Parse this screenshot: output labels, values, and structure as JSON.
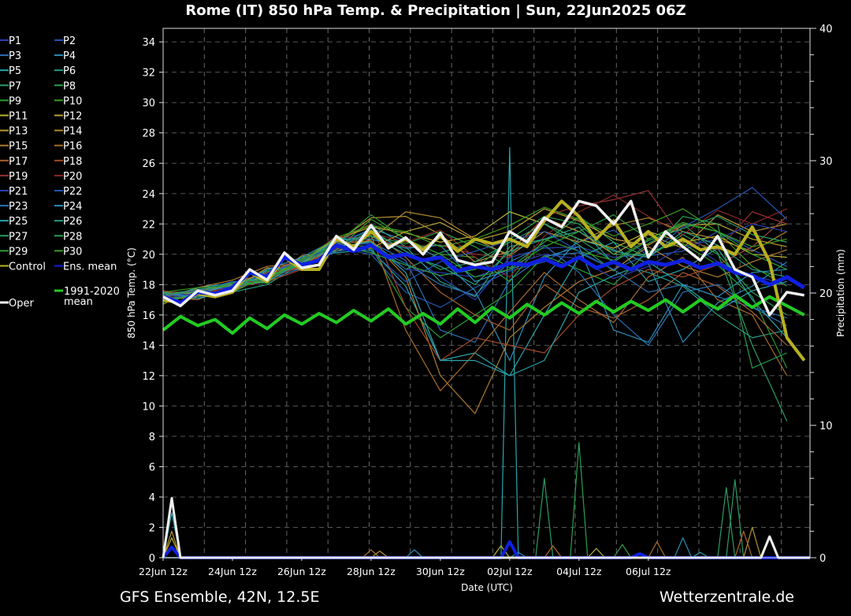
{
  "chart_data": {
    "type": "line",
    "title": "Rome  (IT)  850 hPa Temp. & Precipitation | Sun, 22Jun2025 06Z",
    "xlabel": "Date (UTC)",
    "ylabel": "850 hPa Temp. (°C)",
    "y2label": "Precipitation (mm)",
    "footer_left": "GFS Ensemble, 42N, 12.5E",
    "footer_right": "Wetterzentrale.de",
    "x_unit": "hours since 22Jun 12z",
    "xlim": [
      0,
      448
    ],
    "ylim": [
      0,
      35
    ],
    "y2lim": [
      0,
      40
    ],
    "grid": true,
    "x_ticks": [
      {
        "hour": 0,
        "label": "22Jun 12z"
      },
      {
        "hour": 48,
        "label": "24Jun 12z"
      },
      {
        "hour": 96,
        "label": "26Jun 12z"
      },
      {
        "hour": 144,
        "label": "28Jun 12z"
      },
      {
        "hour": 192,
        "label": "30Jun 12z"
      },
      {
        "hour": 240,
        "label": "02Jul 12z"
      },
      {
        "hour": 288,
        "label": "04Jul 12z"
      },
      {
        "hour": 336,
        "label": "06Jul 12z"
      }
    ],
    "y_ticks": [
      0,
      2,
      4,
      6,
      8,
      10,
      12,
      14,
      16,
      18,
      20,
      22,
      24,
      26,
      28,
      30,
      32,
      34
    ],
    "y2_ticks": [
      0,
      10,
      20,
      30,
      40
    ],
    "legend_placement": "left",
    "member_step_hours": 24,
    "members": [
      {
        "name": "P1",
        "color": "#2a3db0",
        "values": [
          17.0,
          17.3,
          17.9,
          18.4,
          19.6,
          20.9,
          21.5,
          20.2,
          18.5,
          17.0,
          19.8,
          20.4,
          20.5,
          19.8,
          20.0,
          21.0,
          19.5,
          18.6,
          18.0
        ]
      },
      {
        "name": "P2",
        "color": "#2455b0",
        "values": [
          17.3,
          17.1,
          17.6,
          18.8,
          19.0,
          20.4,
          20.0,
          17.5,
          16.5,
          17.8,
          18.9,
          19.5,
          20.8,
          21.6,
          19.9,
          20.2,
          21.5,
          20.3,
          19.2
        ]
      },
      {
        "name": "P3",
        "color": "#2a70b4",
        "values": [
          16.9,
          17.6,
          18.0,
          18.2,
          19.5,
          21.0,
          20.8,
          19.6,
          15.0,
          14.2,
          18.3,
          19.9,
          20.1,
          19.0,
          17.5,
          18.0,
          17.2,
          16.5,
          15.3
        ]
      },
      {
        "name": "P4",
        "color": "#2a8fb8",
        "values": [
          17.4,
          17.4,
          17.7,
          19.0,
          19.2,
          20.5,
          21.7,
          20.9,
          19.7,
          17.6,
          13.0,
          18.5,
          21.0,
          20.3,
          19.4,
          14.2,
          16.8,
          17.9,
          19.5
        ]
      },
      {
        "name": "P5",
        "color": "#2aa4ac",
        "values": [
          17.1,
          17.8,
          18.1,
          18.6,
          19.8,
          20.1,
          20.3,
          17.9,
          13.0,
          13.5,
          12.0,
          16.0,
          19.8,
          20.8,
          18.2,
          19.0,
          20.4,
          17.0,
          14.5
        ]
      },
      {
        "name": "P6",
        "color": "#2a9c84",
        "values": [
          17.0,
          17.2,
          17.5,
          18.0,
          19.4,
          20.8,
          22.0,
          20.5,
          18.2,
          17.2,
          20.5,
          21.0,
          21.8,
          19.4,
          18.8,
          17.9,
          16.0,
          14.5,
          15.0
        ]
      },
      {
        "name": "P7",
        "color": "#2a9c66",
        "values": [
          17.5,
          17.0,
          17.9,
          18.9,
          19.1,
          20.2,
          20.9,
          19.0,
          20.1,
          20.8,
          20.0,
          22.0,
          20.6,
          18.9,
          20.7,
          22.0,
          20.1,
          14.0,
          9.0
        ]
      },
      {
        "name": "P8",
        "color": "#2aa050",
        "values": [
          17.2,
          17.5,
          17.8,
          18.5,
          19.5,
          20.6,
          21.2,
          20.7,
          21.5,
          20.5,
          19.1,
          20.8,
          22.5,
          20.8,
          19.8,
          21.3,
          20.0,
          17.5,
          16.0
        ]
      },
      {
        "name": "P9",
        "color": "#2c9c34",
        "values": [
          16.8,
          17.4,
          18.2,
          18.1,
          19.7,
          20.7,
          20.5,
          16.5,
          14.5,
          16.0,
          17.5,
          19.9,
          19.0,
          18.0,
          20.2,
          20.7,
          19.3,
          17.2,
          12.5
        ]
      },
      {
        "name": "P10",
        "color": "#3c9c22",
        "values": [
          17.3,
          17.3,
          17.6,
          18.7,
          19.3,
          20.3,
          22.3,
          21.0,
          20.0,
          19.8,
          18.2,
          21.0,
          20.2,
          19.6,
          21.0,
          22.1,
          21.5,
          19.2,
          17.9
        ]
      },
      {
        "name": "P11",
        "color": "#b8b232",
        "values": [
          17.2,
          17.5,
          18.0,
          18.4,
          19.6,
          21.0,
          21.8,
          21.4,
          20.8,
          21.2,
          22.8,
          22.0,
          21.0,
          20.4,
          21.5,
          20.8,
          21.2,
          20.0,
          19.8
        ]
      },
      {
        "name": "P12",
        "color": "#baa432",
        "values": [
          17.6,
          17.2,
          17.7,
          19.1,
          19.0,
          20.5,
          20.4,
          21.5,
          22.1,
          20.9,
          21.5,
          23.0,
          22.2,
          21.0,
          20.6,
          21.9,
          22.0,
          21.0,
          20.5
        ]
      },
      {
        "name": "P13",
        "color": "#b89632",
        "values": [
          17.4,
          17.6,
          17.9,
          18.6,
          19.2,
          20.8,
          22.4,
          22.5,
          21.3,
          19.5,
          20.2,
          22.4,
          21.5,
          20.0,
          21.3,
          20.4,
          22.6,
          21.5,
          22.0
        ]
      },
      {
        "name": "P14",
        "color": "#b28a2e",
        "values": [
          17.0,
          17.3,
          17.8,
          18.3,
          19.9,
          20.2,
          21.0,
          22.8,
          22.4,
          21.0,
          19.9,
          21.5,
          20.8,
          21.9,
          22.4,
          21.5,
          21.0,
          20.2,
          21.5
        ]
      },
      {
        "name": "P15",
        "color": "#b07a32",
        "values": [
          16.7,
          17.8,
          18.3,
          19.2,
          19.4,
          20.7,
          20.9,
          18.5,
          12.0,
          9.5,
          14.5,
          16.5,
          18.2,
          19.0,
          20.5,
          19.2,
          18.5,
          19.5,
          20.3
        ]
      },
      {
        "name": "P16",
        "color": "#aa6c2e",
        "values": [
          17.5,
          17.5,
          17.6,
          18.5,
          19.3,
          20.5,
          21.3,
          15.0,
          11.0,
          13.5,
          16.2,
          18.8,
          17.0,
          15.5,
          18.5,
          19.8,
          17.0,
          16.0,
          12.0
        ]
      },
      {
        "name": "P17",
        "color": "#a8602e",
        "values": [
          17.2,
          17.0,
          18.1,
          18.8,
          19.7,
          20.3,
          21.5,
          19.8,
          17.5,
          16.0,
          15.0,
          18.0,
          16.5,
          15.8,
          17.0,
          18.8,
          17.9,
          16.2,
          14.0
        ]
      },
      {
        "name": "P18",
        "color": "#a24a2a",
        "values": [
          17.3,
          17.4,
          17.8,
          18.2,
          19.0,
          20.9,
          22.0,
          16.5,
          13.0,
          14.5,
          14.0,
          13.5,
          16.0,
          17.8,
          19.0,
          18.5,
          19.3,
          20.5,
          22.5
        ]
      },
      {
        "name": "P19",
        "color": "#983232",
        "values": [
          17.1,
          17.7,
          17.5,
          18.6,
          19.5,
          21.2,
          21.0,
          20.5,
          20.6,
          20.0,
          19.8,
          22.5,
          23.2,
          23.6,
          24.2,
          21.0,
          20.3,
          22.8,
          22.0
        ]
      },
      {
        "name": "P20",
        "color": "#882828",
        "values": [
          17.6,
          17.2,
          18.0,
          18.4,
          19.2,
          20.4,
          21.4,
          20.8,
          21.6,
          19.8,
          18.5,
          21.2,
          22.8,
          23.9,
          22.5,
          21.3,
          22.9,
          22.0,
          23.0
        ]
      },
      {
        "name": "P21",
        "color": "#2a3db0",
        "values": [
          17.0,
          17.5,
          17.9,
          18.7,
          19.6,
          20.6,
          20.7,
          19.0,
          18.8,
          18.5,
          19.3,
          20.0,
          19.7,
          18.4,
          19.2,
          20.5,
          21.0,
          22.0,
          21.5
        ]
      },
      {
        "name": "P22",
        "color": "#2455b0",
        "values": [
          17.4,
          17.3,
          17.7,
          18.5,
          19.3,
          20.8,
          20.2,
          18.2,
          19.5,
          20.2,
          20.9,
          21.5,
          20.2,
          19.0,
          20.0,
          21.8,
          23.0,
          24.4,
          22.3
        ]
      },
      {
        "name": "P23",
        "color": "#2a70b4",
        "values": [
          17.2,
          17.6,
          18.2,
          18.3,
          19.1,
          20.2,
          20.5,
          19.4,
          18.0,
          17.3,
          19.5,
          20.6,
          18.8,
          16.0,
          14.0,
          17.5,
          18.0,
          16.5,
          15.8
        ]
      },
      {
        "name": "P24",
        "color": "#2a8fb8",
        "values": [
          17.5,
          17.1,
          17.6,
          19.0,
          19.8,
          21.0,
          21.0,
          20.4,
          20.6,
          18.2,
          19.0,
          19.8,
          20.5,
          15.0,
          14.2,
          18.0,
          17.2,
          18.8,
          19.0
        ]
      },
      {
        "name": "P25",
        "color": "#2aa4ac",
        "values": [
          16.9,
          17.4,
          18.0,
          18.5,
          19.4,
          20.5,
          20.8,
          18.8,
          13.0,
          13.0,
          12.0,
          13.0,
          17.5,
          18.6,
          19.5,
          18.0,
          16.3,
          17.6,
          18.2
        ]
      },
      {
        "name": "P26",
        "color": "#2a9c84",
        "values": [
          17.3,
          17.7,
          17.9,
          18.2,
          19.5,
          20.9,
          21.2,
          20.0,
          19.2,
          18.0,
          20.2,
          21.0,
          21.5,
          20.2,
          19.8,
          21.5,
          20.6,
          19.0,
          18.5
        ]
      },
      {
        "name": "P27",
        "color": "#2a9c66",
        "values": [
          17.1,
          17.2,
          17.8,
          18.9,
          19.2,
          20.3,
          21.6,
          20.2,
          19.0,
          19.5,
          20.8,
          22.0,
          21.0,
          19.5,
          20.9,
          21.7,
          22.5,
          21.3,
          20.8
        ]
      },
      {
        "name": "P28",
        "color": "#2aa050",
        "values": [
          17.4,
          17.5,
          18.1,
          18.4,
          19.7,
          20.6,
          20.1,
          19.3,
          18.6,
          19.0,
          21.0,
          22.5,
          22.0,
          20.0,
          20.0,
          22.5,
          22.0,
          12.5,
          13.5
        ]
      },
      {
        "name": "P29",
        "color": "#2c9c34",
        "values": [
          17.0,
          17.3,
          17.5,
          18.6,
          19.3,
          20.7,
          22.6,
          21.0,
          20.0,
          18.5,
          19.0,
          20.5,
          21.5,
          22.6,
          21.0,
          22.0,
          21.5,
          20.0,
          19.0
        ]
      },
      {
        "name": "P30",
        "color": "#3c9c22",
        "values": [
          17.5,
          17.8,
          17.9,
          18.3,
          19.6,
          21.1,
          21.9,
          21.5,
          20.5,
          21.0,
          21.9,
          23.1,
          22.3,
          21.2,
          22.0,
          23.0,
          21.5,
          20.5,
          21.0
        ]
      }
    ],
    "main_step_hours": 12,
    "control": {
      "name": "Control",
      "color": "#b8b020",
      "values": [
        17.0,
        16.8,
        17.4,
        17.2,
        17.5,
        18.8,
        18.2,
        19.8,
        19.0,
        19.0,
        21.0,
        20.5,
        21.5,
        20.5,
        21.0,
        20.3,
        21.2,
        20.2,
        21.0,
        20.7,
        21.0,
        20.5,
        22.2,
        23.5,
        22.5,
        21.0,
        22.2,
        20.5,
        21.5,
        20.5,
        21.0,
        20.3,
        20.5,
        20.0,
        21.8,
        19.5,
        14.5,
        13.0
      ]
    },
    "ens_mean": {
      "name": "Ens. mean",
      "color": "#1020e0",
      "values": [
        17.2,
        16.8,
        17.5,
        17.4,
        17.8,
        18.8,
        18.5,
        19.8,
        19.3,
        19.6,
        20.6,
        20.2,
        20.6,
        19.8,
        20.0,
        19.6,
        19.8,
        18.9,
        19.2,
        19.0,
        19.4,
        19.3,
        19.7,
        19.2,
        19.8,
        19.1,
        19.5,
        19.0,
        19.5,
        19.3,
        19.6,
        19.1,
        19.4,
        18.8,
        18.6,
        18.0,
        18.5,
        17.8
      ]
    },
    "climatology": {
      "name": "1991-2020 mean",
      "color": "#22cc22",
      "values": [
        15.0,
        15.9,
        15.3,
        15.7,
        14.8,
        15.8,
        15.1,
        16.0,
        15.4,
        16.1,
        15.5,
        16.3,
        15.6,
        16.4,
        15.4,
        16.1,
        15.4,
        16.4,
        15.5,
        16.5,
        15.8,
        16.7,
        16.0,
        16.8,
        16.1,
        16.9,
        16.2,
        16.9,
        16.3,
        17.0,
        16.2,
        17.0,
        16.4,
        17.3,
        16.5,
        17.2,
        16.6,
        16.0
      ]
    },
    "oper": {
      "name": "Oper",
      "color": "#f0f0f0",
      "values": [
        17.2,
        16.6,
        17.6,
        17.3,
        17.6,
        19.0,
        18.3,
        20.1,
        19.1,
        19.3,
        21.2,
        20.3,
        21.9,
        20.4,
        21.1,
        20.0,
        21.4,
        19.6,
        19.3,
        19.5,
        21.5,
        20.8,
        22.4,
        21.8,
        23.5,
        23.2,
        22.0,
        23.5,
        19.8,
        21.5,
        20.5,
        19.6,
        21.2,
        19.0,
        18.5,
        16.0,
        17.5,
        17.3
      ]
    },
    "precipitation": {
      "unit": "mm",
      "oper": [
        [
          6,
          4.5
        ],
        [
          420,
          1.6
        ]
      ],
      "ens_mean": [
        [
          6,
          0.8
        ],
        [
          240,
          1.2
        ],
        [
          330,
          0.3
        ]
      ],
      "members": [
        {
          "color": "#2aa4ac",
          "events": [
            [
              6,
              3.4
            ],
            [
              240,
              31.0
            ],
            [
              372,
              0.4
            ]
          ]
        },
        {
          "color": "#b89632",
          "events": [
            [
              6,
              2.0
            ],
            [
              150,
              0.5
            ],
            [
              408,
              2.3
            ]
          ]
        },
        {
          "color": "#2a9c66",
          "events": [
            [
              264,
              6.0
            ],
            [
              396,
              5.9
            ],
            [
              390,
              5.3
            ]
          ]
        },
        {
          "color": "#2aa050",
          "events": [
            [
              288,
              8.7
            ],
            [
              318,
              1.0
            ]
          ]
        },
        {
          "color": "#aa6c2e",
          "events": [
            [
              144,
              0.6
            ],
            [
              270,
              0.9
            ],
            [
              342,
              1.2
            ],
            [
              402,
              2.0
            ]
          ]
        },
        {
          "color": "#b8b232",
          "events": [
            [
              6,
              1.5
            ],
            [
              234,
              0.9
            ],
            [
              300,
              0.7
            ]
          ]
        },
        {
          "color": "#2a8fb8",
          "events": [
            [
              174,
              0.6
            ],
            [
              360,
              1.5
            ],
            [
              246,
              0.4
            ]
          ]
        }
      ]
    },
    "legend": [
      "P1",
      "P2",
      "P3",
      "P4",
      "P5",
      "P6",
      "P7",
      "P8",
      "P9",
      "P10",
      "P11",
      "P12",
      "P13",
      "P14",
      "P15",
      "P16",
      "P17",
      "P18",
      "P19",
      "P20",
      "P21",
      "P22",
      "P23",
      "P24",
      "P25",
      "P26",
      "P27",
      "P28",
      "P29",
      "P30",
      "Control",
      "Ens. mean"
    ],
    "legend_clim": [
      "1991-2020",
      "mean"
    ],
    "legend_oper": "Oper"
  }
}
